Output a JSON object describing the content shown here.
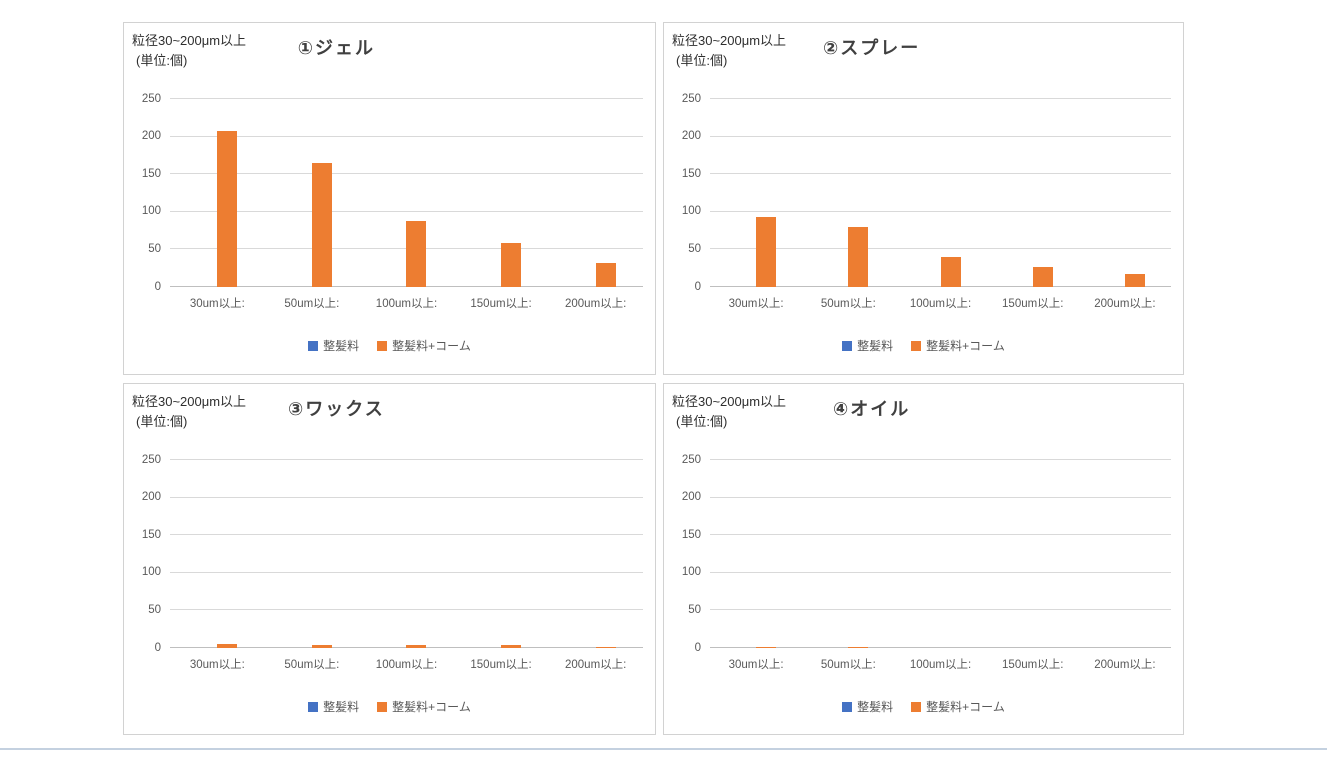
{
  "colors": {
    "series_blue": "#4472C4",
    "series_orange": "#ED7D31",
    "gridline": "#D9D9D9",
    "zero_line": "#BFBFBF",
    "panel_border": "#D2D2D2",
    "axis_text": "#595959",
    "title_text": "#404040",
    "bottom_rule": "#C4D1E0"
  },
  "shared": {
    "annotation_line1": "粒径30~200μm以上",
    "annotation_line2": "(単位:個)",
    "categories": [
      "30um以上:",
      "50um以上:",
      "100um以上:",
      "150um以上:",
      "200um以上:"
    ],
    "legend": [
      {
        "label": "整髪料",
        "color": "#4472C4"
      },
      {
        "label": "整髪料+コーム",
        "color": "#ED7D31"
      }
    ],
    "yticks": [
      250,
      200,
      150,
      100,
      50,
      0
    ],
    "ylim": [
      0,
      250
    ]
  },
  "chart_data": [
    {
      "type": "bar",
      "title": "①ジェル",
      "annotation_line1": "粒径30~200μm以上",
      "annotation_line2": "(単位:個)",
      "categories": [
        "30um以上:",
        "50um以上:",
        "100um以上:",
        "150um以上:",
        "200um以上:"
      ],
      "series": [
        {
          "name": "整髪料",
          "values": [
            0,
            0,
            0,
            0,
            0
          ]
        },
        {
          "name": "整髪料+コーム",
          "values": [
            207,
            165,
            88,
            58,
            32
          ]
        }
      ],
      "ylim": [
        0,
        250
      ],
      "yticks": [
        0,
        50,
        100,
        150,
        200,
        250
      ],
      "grid": true,
      "legend_position": "bottom"
    },
    {
      "type": "bar",
      "title": "②スプレー",
      "annotation_line1": "粒径30~200μm以上",
      "annotation_line2": "(単位:個)",
      "categories": [
        "30um以上:",
        "50um以上:",
        "100um以上:",
        "150um以上:",
        "200um以上:"
      ],
      "series": [
        {
          "name": "整髪料",
          "values": [
            0,
            0,
            0,
            0,
            0
          ]
        },
        {
          "name": "整髪料+コーム",
          "values": [
            93,
            80,
            40,
            27,
            17
          ]
        }
      ],
      "ylim": [
        0,
        250
      ],
      "yticks": [
        0,
        50,
        100,
        150,
        200,
        250
      ],
      "grid": true,
      "legend_position": "bottom"
    },
    {
      "type": "bar",
      "title": "③ワックス",
      "annotation_line1": "粒径30~200μm以上",
      "annotation_line2": "(単位:個)",
      "categories": [
        "30um以上:",
        "50um以上:",
        "100um以上:",
        "150um以上:",
        "200um以上:"
      ],
      "series": [
        {
          "name": "整髪料",
          "values": [
            0,
            0,
            0,
            0,
            0
          ]
        },
        {
          "name": "整髪料+コーム",
          "values": [
            6,
            4,
            4,
            4,
            2
          ]
        }
      ],
      "ylim": [
        0,
        250
      ],
      "yticks": [
        0,
        50,
        100,
        150,
        200,
        250
      ],
      "grid": true,
      "legend_position": "bottom"
    },
    {
      "type": "bar",
      "title": "④オイル",
      "annotation_line1": "粒径30~200μm以上",
      "annotation_line2": "(単位:個)",
      "categories": [
        "30um以上:",
        "50um以上:",
        "100um以上:",
        "150um以上:",
        "200um以上:"
      ],
      "series": [
        {
          "name": "整髪料",
          "values": [
            0,
            0,
            0,
            0,
            0
          ]
        },
        {
          "name": "整髪料+コーム",
          "values": [
            2,
            2,
            0,
            0,
            0
          ]
        }
      ],
      "ylim": [
        0,
        250
      ],
      "yticks": [
        0,
        50,
        100,
        150,
        200,
        250
      ],
      "grid": true,
      "legend_position": "bottom"
    }
  ]
}
